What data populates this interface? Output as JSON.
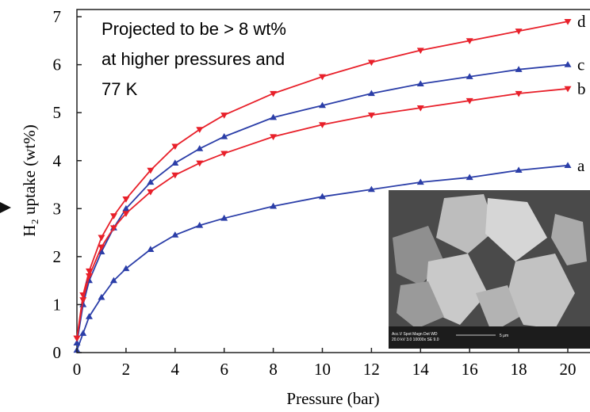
{
  "chart_data": {
    "type": "line",
    "xlabel": "Pressure (bar)",
    "ylabel": "H₂ uptake (wt%)",
    "annotation": [
      "Projected to be > 8 wt%",
      "at higher pressures and",
      "77 K"
    ],
    "inset_caption": [
      "Acc.V  Spot Magn   Det  WD",
      "20.0 kV 3.0  10000x   SE   9.0",
      "5 μm"
    ],
    "x": [
      0,
      0.25,
      0.5,
      1,
      1.5,
      2,
      3,
      4,
      5,
      6,
      8,
      10,
      12,
      14,
      16,
      18,
      20
    ],
    "series": [
      {
        "name": "d",
        "color": "#e8202a",
        "values": [
          0.3,
          1.2,
          1.7,
          2.4,
          2.85,
          3.2,
          3.8,
          4.3,
          4.65,
          4.95,
          5.4,
          5.75,
          6.05,
          6.3,
          6.5,
          6.7,
          6.9
        ]
      },
      {
        "name": "c",
        "color": "#2b3ea8",
        "values": [
          0.2,
          1.0,
          1.5,
          2.1,
          2.6,
          3.0,
          3.55,
          3.95,
          4.25,
          4.5,
          4.9,
          5.15,
          5.4,
          5.6,
          5.75,
          5.9,
          6.0
        ]
      },
      {
        "name": "b",
        "color": "#e8202a",
        "values": [
          0.3,
          1.1,
          1.6,
          2.2,
          2.6,
          2.9,
          3.35,
          3.7,
          3.95,
          4.15,
          4.5,
          4.75,
          4.95,
          5.1,
          5.25,
          5.4,
          5.5
        ]
      },
      {
        "name": "a",
        "color": "#2b3ea8",
        "values": [
          0.05,
          0.4,
          0.75,
          1.15,
          1.5,
          1.75,
          2.15,
          2.45,
          2.65,
          2.8,
          3.05,
          3.25,
          3.4,
          3.55,
          3.65,
          3.8,
          3.9
        ]
      }
    ],
    "xlim": [
      0,
      20
    ],
    "ylim": [
      0,
      7.15
    ],
    "xticks": [
      0,
      2,
      4,
      6,
      8,
      10,
      12,
      14,
      16,
      18,
      20
    ],
    "yticks": [
      0,
      1,
      2,
      3,
      4,
      5,
      6,
      7
    ]
  }
}
